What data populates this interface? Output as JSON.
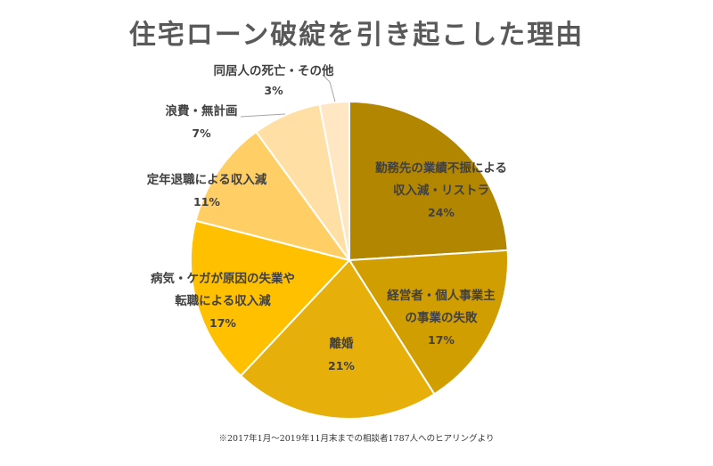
{
  "title": "住宅ローン破綻を引き起こした理由",
  "footnote": "※2017年1月～2019年11月末までの相談者1787人へのヒアリングより",
  "chart_data": {
    "type": "pie",
    "title": "住宅ローン破綻を引き起こした理由",
    "start_angle_deg": 0,
    "direction": "clockwise",
    "slices": [
      {
        "label_lines": [
          "勤務先の業績不振による",
          "収入減・リストラ"
        ],
        "value": 24,
        "pct_label": "24%",
        "color": "#B38600"
      },
      {
        "label_lines": [
          "経営者・個人事業主",
          "の事業の失敗"
        ],
        "value": 17,
        "pct_label": "17%",
        "color": "#D19E00"
      },
      {
        "label_lines": [
          "離婚"
        ],
        "value": 21,
        "pct_label": "21%",
        "color": "#E6AF0A"
      },
      {
        "label_lines": [
          "病気・ケガが原因の失業や",
          "転職による収入減"
        ],
        "value": 17,
        "pct_label": "17%",
        "color": "#FFC000"
      },
      {
        "label_lines": [
          "定年退職による収入減"
        ],
        "value": 11,
        "pct_label": "11%",
        "color": "#FFCF66"
      },
      {
        "label_lines": [
          "浪費・無計画"
        ],
        "value": 7,
        "pct_label": "7%",
        "color": "#FFDFA3"
      },
      {
        "label_lines": [
          "同居人の死亡・その他"
        ],
        "value": 3,
        "pct_label": "3%",
        "color": "#FFE7C4"
      }
    ]
  }
}
